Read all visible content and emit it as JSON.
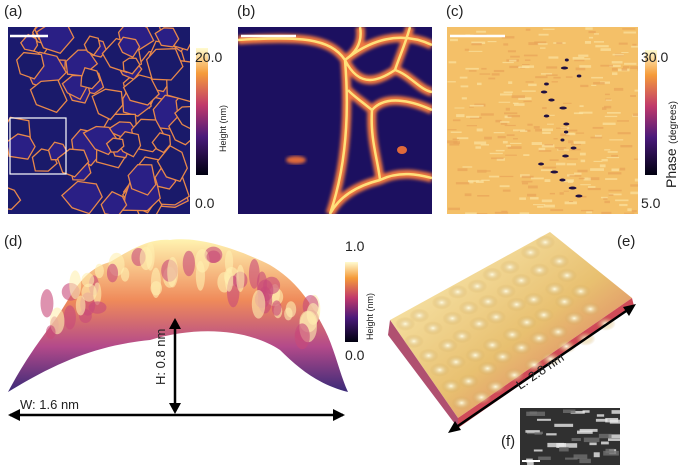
{
  "panels": [
    {
      "label": "(a)",
      "colorbar": {
        "max": "20.0",
        "min": "0.0",
        "title": "Height",
        "unit": "(nm)"
      }
    },
    {
      "label": "(b)"
    },
    {
      "label": "(c)",
      "colorbar": {
        "max": "30.0",
        "min": "5.0",
        "title": "Phase",
        "unit": "(degrees)"
      }
    },
    {
      "label": "(d)",
      "colorbar": {
        "max": "1.0",
        "min": "0.0",
        "title": "Height",
        "unit": "(nm)"
      },
      "annotations": [
        "W: 1.6 nm",
        "H: 0.8 nm"
      ]
    },
    {
      "label": "(e)",
      "annotations": [
        "L: 2.8 nm"
      ]
    },
    {
      "label": "(f)"
    }
  ]
}
